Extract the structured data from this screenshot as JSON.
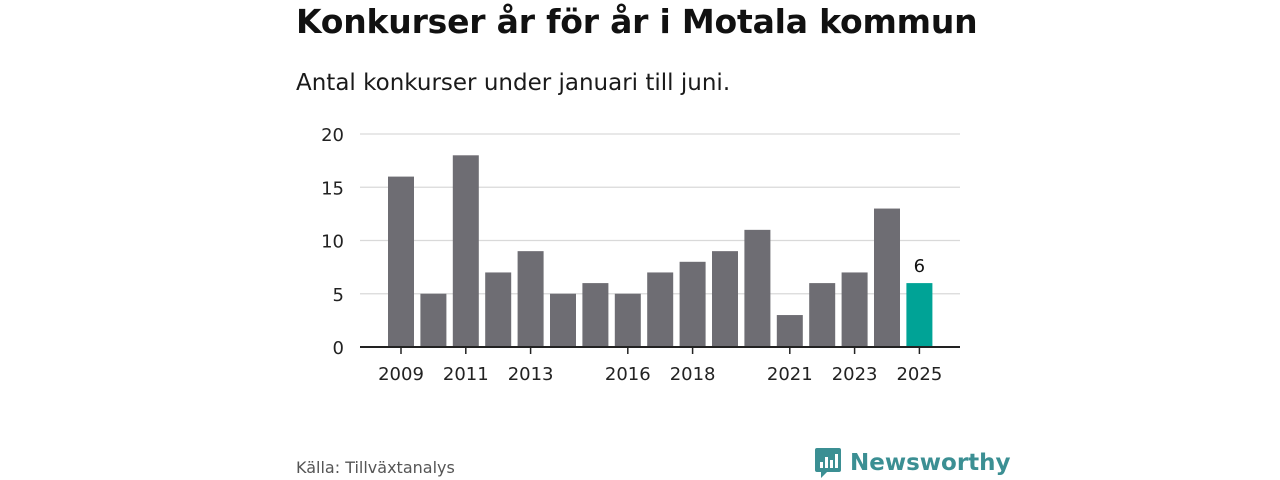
{
  "title": "Konkurser år för år i Motala kommun",
  "subtitle": "Antal konkurser under januari till juni.",
  "source": "Källa: Tillväxtanalys",
  "brand": "Newsworthy",
  "colors": {
    "bar": "#6e6d73",
    "highlight": "#00a396",
    "grid": "#d9d9d9",
    "axis": "#222222",
    "brand": "#3b8f93"
  },
  "chart_data": {
    "type": "bar",
    "categories": [
      "2009",
      "2010",
      "2011",
      "2012",
      "2013",
      "2014",
      "2015",
      "2016",
      "2017",
      "2018",
      "2019",
      "2020",
      "2021",
      "2022",
      "2023",
      "2024",
      "2025"
    ],
    "values": [
      16,
      5,
      18,
      7,
      9,
      5,
      6,
      5,
      7,
      8,
      9,
      11,
      3,
      6,
      7,
      13,
      6
    ],
    "tick_labels": [
      "2009",
      "2011",
      "2013",
      "2016",
      "2018",
      "2021",
      "2023",
      "2025"
    ],
    "y_ticks": [
      0,
      5,
      10,
      15,
      20
    ],
    "ylim": [
      0,
      20
    ],
    "highlight_category": "2025",
    "highlight_label": "6",
    "title": "Konkurser år för år i Motala kommun",
    "subtitle": "Antal konkurser under januari till juni.",
    "xlabel": "",
    "ylabel": "",
    "grid": true
  }
}
